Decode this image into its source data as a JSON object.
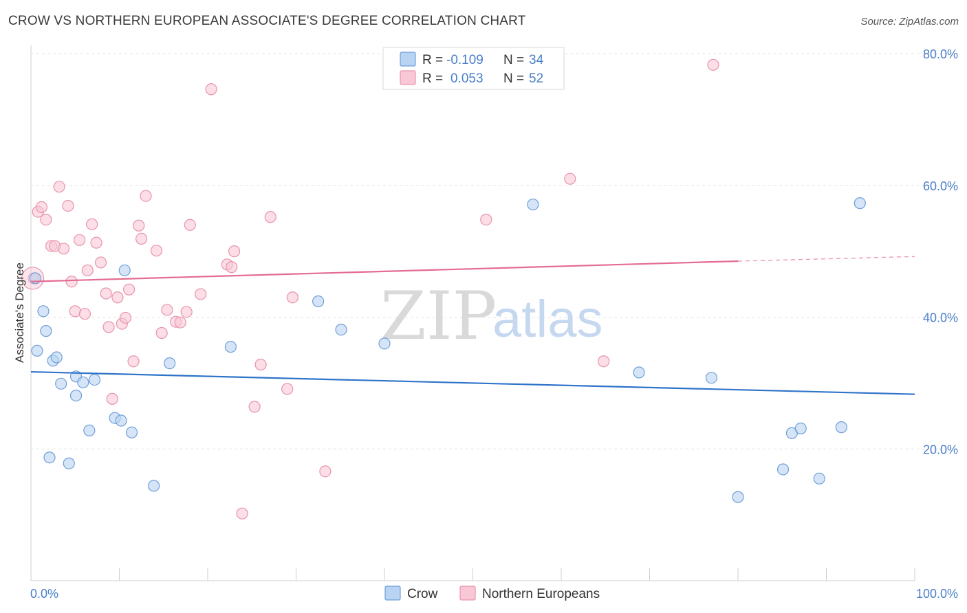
{
  "title": "CROW VS NORTHERN EUROPEAN ASSOCIATE'S DEGREE CORRELATION CHART",
  "source": "Source: ZipAtlas.com",
  "watermark": {
    "zip": "ZIP",
    "atlas": "atlas"
  },
  "colors": {
    "crow_fill": "#b9d3f2",
    "crow_stroke": "#6f9fd8",
    "crow_line": "#2e74c9",
    "ne_fill": "#f9c8d6",
    "ne_stroke": "#e893ac",
    "ne_line": "#e46b92",
    "axis_text": "#4a7fc8"
  },
  "legend": {
    "crow": {
      "r_label": "R =",
      "r_value": "-0.109",
      "n_label": "N =",
      "n_value": "34"
    },
    "ne": {
      "r_label": "R =",
      "r_value": "0.053",
      "n_label": "N =",
      "n_value": "52"
    }
  },
  "bottom_legend": {
    "crow": "Crow",
    "ne": "Northern Europeans"
  },
  "chart_data": {
    "type": "scatter",
    "xlabel": "",
    "ylabel": "Associate's Degree",
    "xlim": [
      0,
      100
    ],
    "ylim": [
      0,
      80
    ],
    "x_tick_labels": [
      "0.0%",
      "100.0%"
    ],
    "y_ticks": [
      20,
      40,
      60,
      80
    ],
    "y_tick_labels": [
      "20.0%",
      "40.0%",
      "60.0%",
      "80.0%"
    ],
    "grid": true,
    "series": [
      {
        "name": "Crow",
        "trend": {
          "x": [
            0,
            100
          ],
          "y": [
            31.7,
            28.3
          ]
        },
        "points": [
          [
            0.5,
            45.9
          ],
          [
            0.7,
            34.9
          ],
          [
            1.4,
            40.9
          ],
          [
            1.7,
            37.9
          ],
          [
            2.1,
            18.7
          ],
          [
            2.5,
            33.4
          ],
          [
            2.9,
            33.9
          ],
          [
            3.4,
            29.9
          ],
          [
            4.3,
            17.8
          ],
          [
            5.1,
            28.1
          ],
          [
            5.1,
            31.0
          ],
          [
            5.9,
            30.1
          ],
          [
            6.6,
            22.8
          ],
          [
            7.2,
            30.5
          ],
          [
            9.5,
            24.7
          ],
          [
            10.2,
            24.3
          ],
          [
            10.6,
            47.1
          ],
          [
            11.4,
            22.5
          ],
          [
            13.9,
            14.4
          ],
          [
            15.7,
            33.0
          ],
          [
            22.6,
            35.5
          ],
          [
            32.5,
            42.4
          ],
          [
            35.1,
            38.1
          ],
          [
            40.0,
            36.0
          ],
          [
            56.8,
            57.1
          ],
          [
            68.8,
            31.6
          ],
          [
            77.0,
            30.8
          ],
          [
            80.0,
            12.7
          ],
          [
            85.1,
            16.9
          ],
          [
            86.1,
            22.4
          ],
          [
            87.1,
            23.1
          ],
          [
            89.2,
            15.5
          ],
          [
            91.7,
            23.3
          ],
          [
            93.8,
            57.3
          ]
        ]
      },
      {
        "name": "Northern Europeans",
        "trend": {
          "x": [
            0,
            80
          ],
          "y": [
            45.4,
            48.5
          ]
        },
        "dash": {
          "x": [
            80,
            100
          ],
          "y": [
            48.5,
            49.2
          ]
        },
        "points": [
          [
            0.3,
            45.9
          ],
          [
            0.8,
            56.0
          ],
          [
            1.2,
            56.7
          ],
          [
            1.7,
            54.8
          ],
          [
            2.3,
            50.8
          ],
          [
            2.7,
            50.8
          ],
          [
            3.2,
            59.8
          ],
          [
            3.7,
            50.4
          ],
          [
            4.2,
            56.9
          ],
          [
            4.6,
            45.4
          ],
          [
            5.0,
            40.9
          ],
          [
            5.5,
            51.7
          ],
          [
            6.1,
            40.5
          ],
          [
            6.4,
            47.1
          ],
          [
            6.9,
            54.1
          ],
          [
            7.4,
            51.3
          ],
          [
            7.9,
            48.3
          ],
          [
            8.5,
            43.6
          ],
          [
            8.8,
            38.5
          ],
          [
            9.2,
            27.6
          ],
          [
            9.8,
            43.0
          ],
          [
            10.3,
            39.0
          ],
          [
            10.7,
            39.9
          ],
          [
            11.1,
            44.2
          ],
          [
            11.6,
            33.3
          ],
          [
            12.2,
            53.9
          ],
          [
            12.5,
            51.9
          ],
          [
            13.0,
            58.4
          ],
          [
            14.2,
            50.1
          ],
          [
            14.8,
            37.6
          ],
          [
            15.4,
            41.1
          ],
          [
            16.4,
            39.3
          ],
          [
            16.9,
            39.2
          ],
          [
            17.6,
            40.8
          ],
          [
            18.0,
            54.0
          ],
          [
            19.2,
            43.5
          ],
          [
            20.4,
            74.6
          ],
          [
            22.2,
            48.0
          ],
          [
            22.7,
            47.6
          ],
          [
            23.0,
            50.0
          ],
          [
            23.9,
            10.2
          ],
          [
            25.3,
            26.4
          ],
          [
            26.0,
            32.8
          ],
          [
            27.1,
            55.2
          ],
          [
            29.0,
            29.1
          ],
          [
            29.6,
            43.0
          ],
          [
            33.3,
            16.6
          ],
          [
            51.5,
            54.8
          ],
          [
            61.0,
            61.0
          ],
          [
            64.8,
            33.3
          ],
          [
            77.2,
            78.3
          ],
          [
            0.2,
            45.9
          ]
        ]
      }
    ]
  }
}
